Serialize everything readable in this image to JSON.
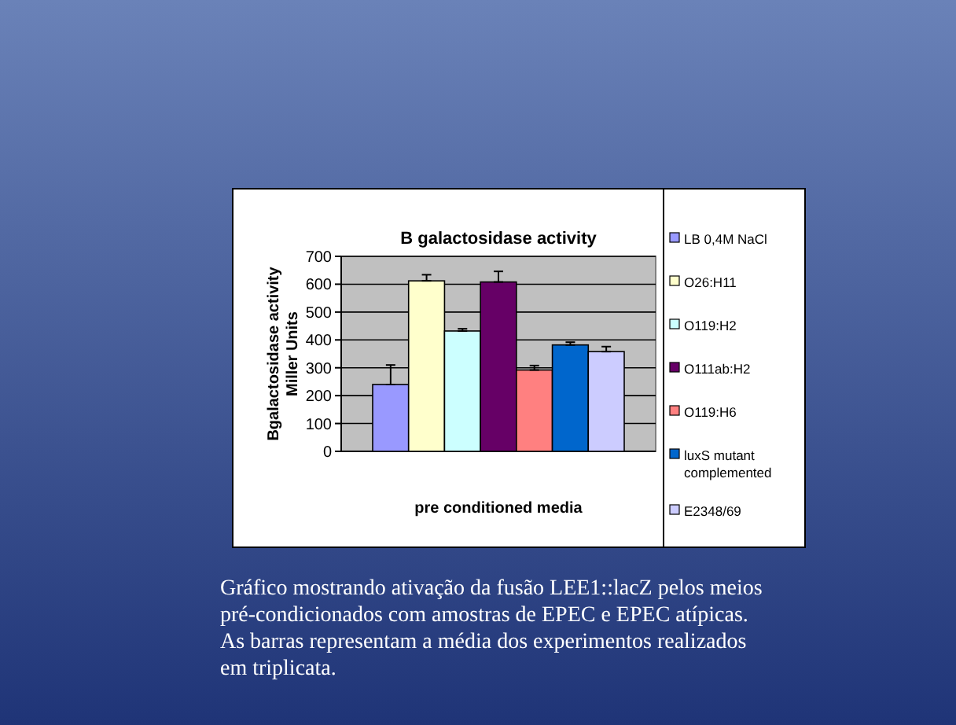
{
  "chart_data": {
    "type": "bar",
    "title": "B galactosidase activity",
    "xlabel": "pre conditioned media",
    "ylabel": "Bgalactosidase activity\nMiller Units",
    "categories": [
      null
    ],
    "series": [
      {
        "name": "LB 0,4M NaCl",
        "color": "#9999ff",
        "values": [
          240
        ],
        "errors": [
          [
            240,
            310
          ]
        ]
      },
      {
        "name": "O26:H11",
        "color": "#ffffcc",
        "values": [
          612
        ],
        "errors": [
          [
            612,
            634
          ]
        ]
      },
      {
        "name": "O119:H2",
        "color": "#ccffff",
        "values": [
          432
        ],
        "errors": [
          [
            432,
            440
          ]
        ]
      },
      {
        "name": "O111ab:H2",
        "color": "#660066",
        "values": [
          608
        ],
        "errors": [
          [
            608,
            646
          ]
        ]
      },
      {
        "name": "O119:H6",
        "color": "#ff8080",
        "values": [
          292
        ],
        "errors": [
          [
            292,
            308
          ]
        ]
      },
      {
        "name": "luxS mutant complemented",
        "color": "#0066cc",
        "values": [
          382
        ],
        "errors": [
          [
            382,
            392
          ]
        ]
      },
      {
        "name": "E2348/69",
        "color": "#ccccff",
        "values": [
          358
        ],
        "errors": [
          [
            358,
            376
          ]
        ]
      }
    ],
    "ylim": [
      0,
      700
    ],
    "yticks": [
      0,
      100,
      200,
      300,
      400,
      500,
      600,
      700
    ],
    "grid": "y",
    "legend": "right",
    "annotations": [
      "Gráfico mostrando ativação da fusão LEE1::lacZ pelos meios pré-condicionados com amostras de EPEC e EPEC atípicas. As barras representam a média dos experimentos realizados em triplicata."
    ]
  }
}
